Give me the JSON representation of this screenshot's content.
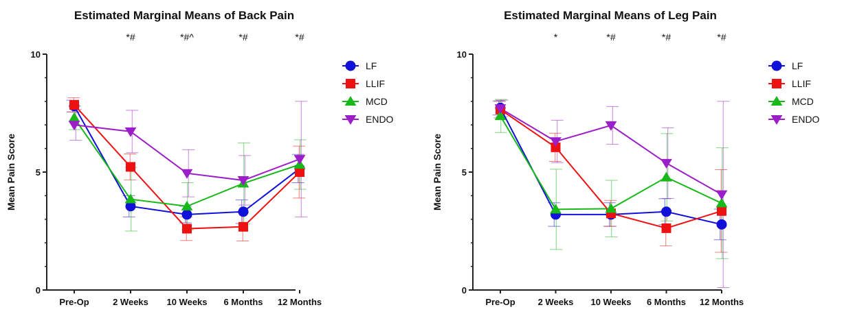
{
  "chart_data": [
    {
      "type": "line",
      "title": "Estimated Marginal Means of Back Pain",
      "ylabel": "Mean Pain Score",
      "xlabel": "",
      "categories": [
        "Pre-Op",
        "2 Weeks",
        "10 Weeks",
        "6 Months",
        "12 Months"
      ],
      "significance": [
        "",
        "*#",
        "*#^",
        "*#",
        "*#"
      ],
      "ylim": [
        0,
        10
      ],
      "yticks": [
        0,
        5,
        10
      ],
      "grid": false,
      "legend_position": "right",
      "series": [
        {
          "name": "LF",
          "color": "#1010d8",
          "marker": "circle",
          "values": [
            7.8,
            3.55,
            3.2,
            3.32,
            5.15
          ],
          "err": [
            0.25,
            0.45,
            0.35,
            0.5,
            0.6
          ]
        },
        {
          "name": "LLIF",
          "color": "#ee1111",
          "marker": "square",
          "values": [
            7.85,
            5.22,
            2.6,
            2.68,
            5.0
          ],
          "err": [
            0.3,
            0.55,
            0.5,
            0.6,
            1.1
          ]
        },
        {
          "name": "MCD",
          "color": "#18b818",
          "marker": "triangle-up",
          "values": [
            7.3,
            3.85,
            3.55,
            4.52,
            5.32
          ],
          "err": [
            0.5,
            1.35,
            1.0,
            1.72,
            1.05
          ]
        },
        {
          "name": "ENDO",
          "color": "#9b1ec8",
          "marker": "triangle-down",
          "values": [
            7.0,
            6.72,
            4.95,
            4.65,
            5.55
          ],
          "err": [
            0.65,
            0.9,
            1.0,
            1.05,
            2.45
          ]
        }
      ]
    },
    {
      "type": "line",
      "title": "Estimated Marginal Means of Leg Pain",
      "ylabel": "Mean Pain Score",
      "xlabel": "",
      "categories": [
        "Pre-Op",
        "2 Weeks",
        "10 Weeks",
        "6 Months",
        "12 Months"
      ],
      "significance": [
        "",
        "*",
        "*#",
        "*#",
        "*#"
      ],
      "ylim": [
        0,
        10
      ],
      "yticks": [
        0,
        5,
        10
      ],
      "grid": false,
      "legend_position": "right",
      "series": [
        {
          "name": "LF",
          "color": "#1010d8",
          "marker": "circle",
          "values": [
            7.72,
            3.2,
            3.2,
            3.32,
            2.78
          ],
          "err": [
            0.3,
            0.5,
            0.5,
            0.55,
            0.65
          ]
        },
        {
          "name": "LLIF",
          "color": "#ee1111",
          "marker": "square",
          "values": [
            7.65,
            6.05,
            3.25,
            2.62,
            3.35
          ],
          "err": [
            0.35,
            0.6,
            0.55,
            0.75,
            1.75
          ]
        },
        {
          "name": "MCD",
          "color": "#18b818",
          "marker": "triangle-up",
          "values": [
            7.38,
            3.42,
            3.45,
            4.78,
            3.68
          ],
          "err": [
            0.7,
            1.7,
            1.2,
            1.85,
            2.35
          ]
        },
        {
          "name": "ENDO",
          "color": "#9b1ec8",
          "marker": "triangle-down",
          "values": [
            7.7,
            6.3,
            6.98,
            5.38,
            4.05
          ],
          "err": [
            0.35,
            0.9,
            0.8,
            1.5,
            3.95
          ]
        }
      ]
    }
  ]
}
